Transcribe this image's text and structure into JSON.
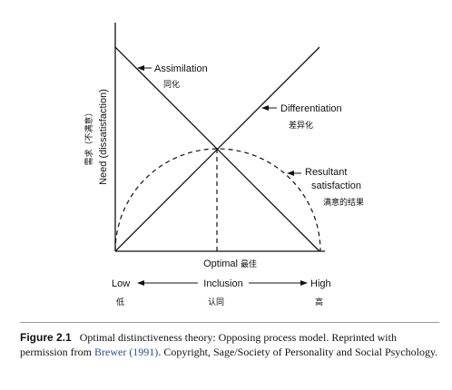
{
  "diagram": {
    "y_axis": {
      "label": "Need (dissatisfaction)",
      "label_cn": "需求（不满意）"
    },
    "x_axis": {
      "label": "Inclusion",
      "label_cn": "认同",
      "low": "Low",
      "low_cn": "低",
      "high": "High",
      "high_cn": "高"
    },
    "optimal": {
      "label": "Optimal",
      "label_cn": "最佳"
    },
    "curves": {
      "assimilation": {
        "label": "Assimilation",
        "label_cn": "同化"
      },
      "differentiation": {
        "label": "Differentiation",
        "label_cn": "差异化"
      },
      "resultant": {
        "label_line1": "Resultant",
        "label_line2": "satisfaction",
        "label_cn": "满意的结果"
      }
    }
  },
  "caption": {
    "figure_label": "Figure 2.1",
    "text_before": "Optimal distinctiveness theory: Opposing process model. Reprinted with permission from",
    "reference": "Brewer (1991)",
    "text_after": ". Copyright, Sage/Society of Personality and Social Psychology."
  }
}
